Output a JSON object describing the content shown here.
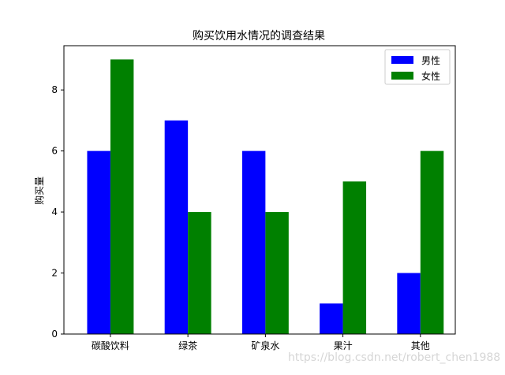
{
  "chart_data": {
    "type": "bar",
    "title": "购买饮用水情况的调查结果",
    "ylabel": "购买量",
    "xlabel": "",
    "categories": [
      "碳酸饮料",
      "绿茶",
      "矿泉水",
      "果汁",
      "其他"
    ],
    "series": [
      {
        "name": "男性",
        "color": "#0000ff",
        "values": [
          6,
          7,
          6,
          1,
          2
        ]
      },
      {
        "name": "女性",
        "color": "#008000",
        "values": [
          9,
          4,
          4,
          5,
          6
        ]
      }
    ],
    "ylim": [
      0,
      9.45
    ],
    "yticks": [
      0,
      2,
      4,
      6,
      8
    ],
    "legend_position": "top-right",
    "grid": false
  },
  "watermark": "https://blog.csdn.net/robert_chen1988"
}
